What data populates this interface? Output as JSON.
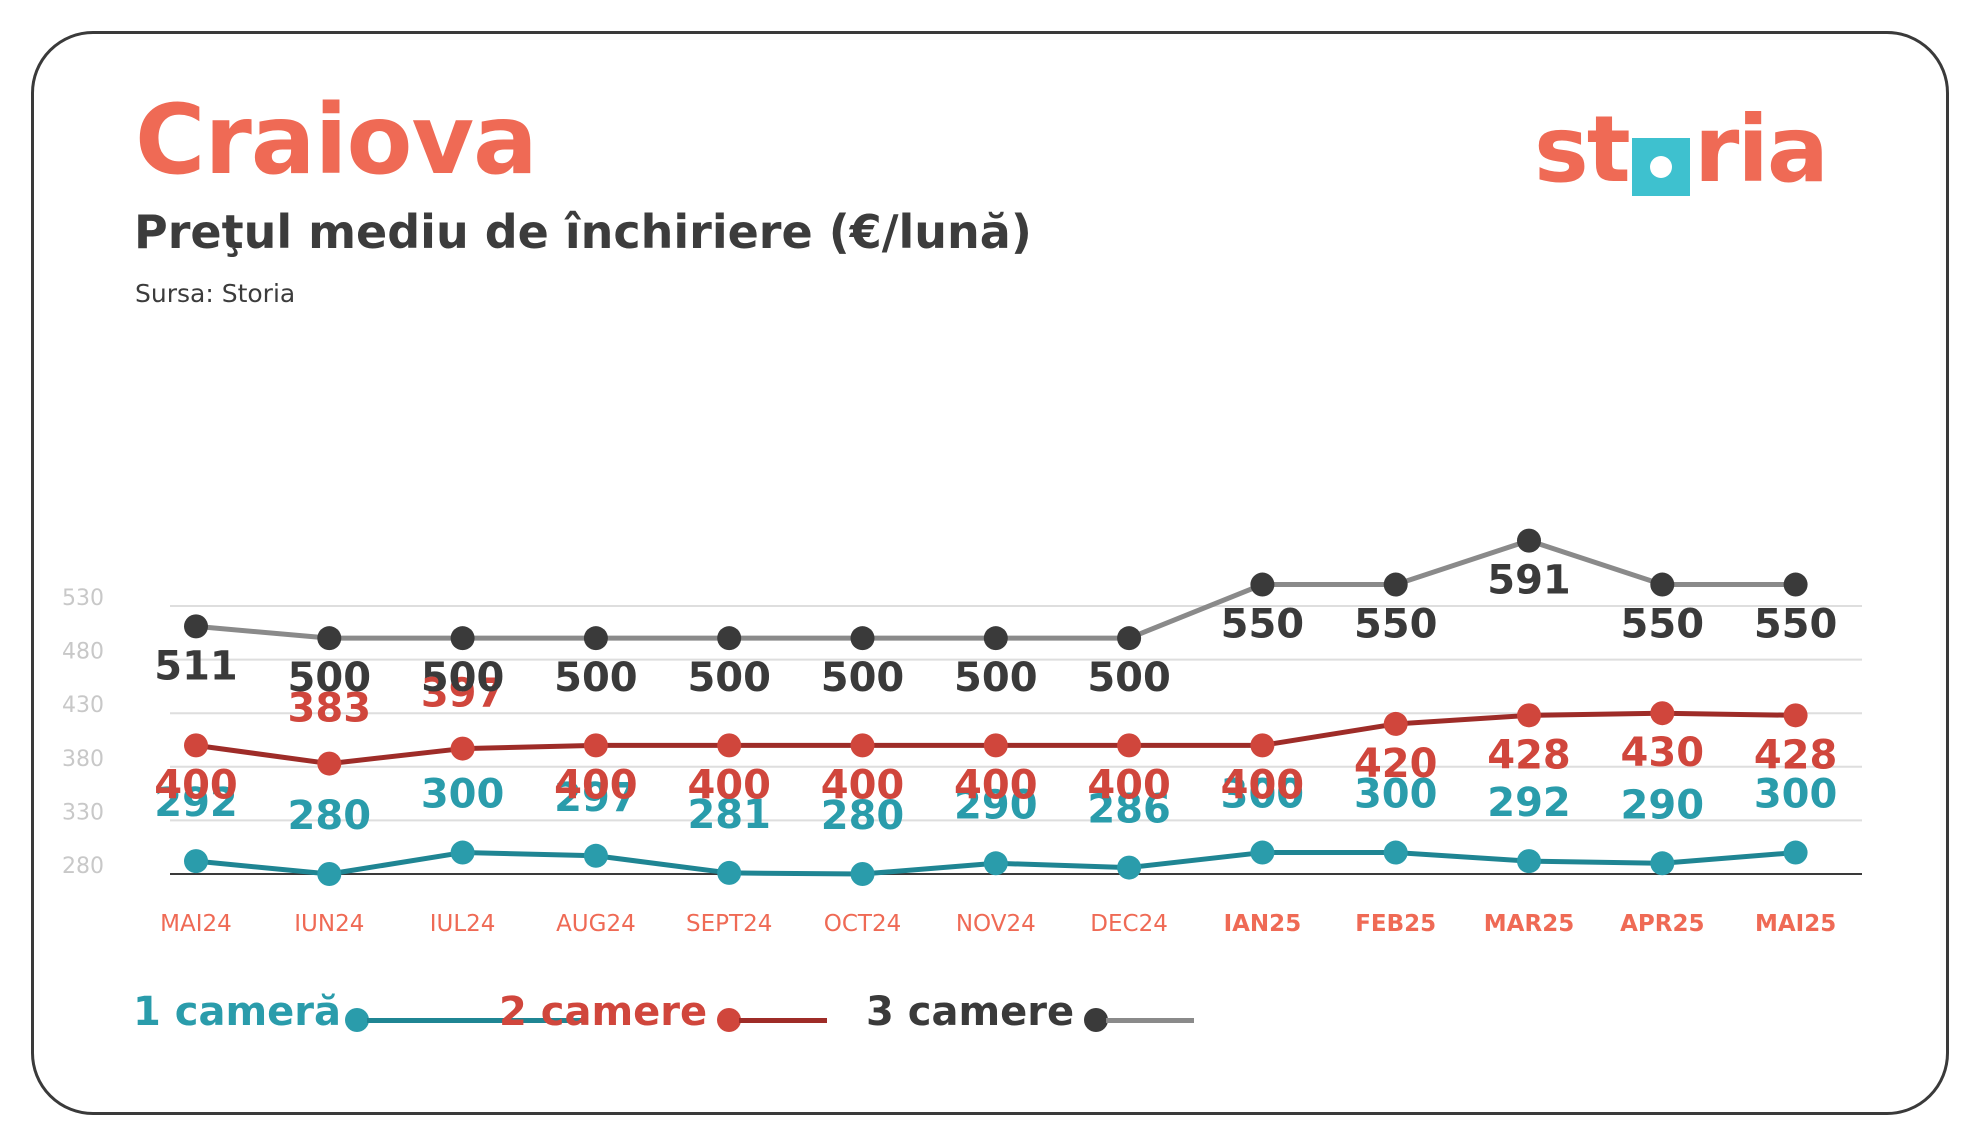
{
  "header": {
    "title": "Craiova",
    "subtitle": "Preţul mediu de închiriere (€/lună)",
    "source": "Sursa: Storia"
  },
  "logo": {
    "text_st": "st",
    "text_ria": "ria",
    "brand_color": "#ef6a55",
    "accent_color": "#3ec1cf"
  },
  "legend": {
    "items": [
      {
        "label": "1 cameră",
        "color": "#2a9cab",
        "line_color": "#1f8593"
      },
      {
        "label": "2 camere",
        "color": "#d0463c",
        "line_color": "#9e2c28"
      },
      {
        "label": "3 camere",
        "color": "#3a3a3a",
        "line_color": "#8a8a8a"
      }
    ]
  },
  "chart_data": {
    "type": "line",
    "title": "Preţul mediu de închiriere (€/lună)",
    "xlabel": "",
    "ylabel": "",
    "categories": [
      "MAI24",
      "IUN24",
      "IUL24",
      "AUG24",
      "SEPT24",
      "OCT24",
      "NOV24",
      "DEC24",
      "IAN25",
      "FEB25",
      "MAR25",
      "APR25",
      "MAI25"
    ],
    "bold_categories": [
      "IAN25",
      "FEB25",
      "MAR25",
      "APR25",
      "MAI25"
    ],
    "y_ticks": [
      280,
      330,
      380,
      430,
      480,
      530
    ],
    "ylim": [
      280,
      530
    ],
    "grid": true,
    "legend_position": "bottom-left",
    "series": [
      {
        "name": "1 cameră",
        "values": [
          292,
          280,
          300,
          297,
          281,
          280,
          290,
          286,
          300,
          300,
          292,
          290,
          300
        ],
        "color": "#2a9cab",
        "line_color": "#1f8593",
        "label_position": "above"
      },
      {
        "name": "2 camere",
        "values": [
          400,
          383,
          397,
          400,
          400,
          400,
          400,
          400,
          400,
          420,
          428,
          430,
          428
        ],
        "color": "#d0463c",
        "line_color": "#9e2c28",
        "label_position": "mixed"
      },
      {
        "name": "3 camere",
        "values": [
          511,
          500,
          500,
          500,
          500,
          500,
          500,
          500,
          550,
          550,
          591,
          550,
          550
        ],
        "color": "#3a3a3a",
        "line_color": "#8a8a8a",
        "label_position": "below"
      }
    ]
  }
}
